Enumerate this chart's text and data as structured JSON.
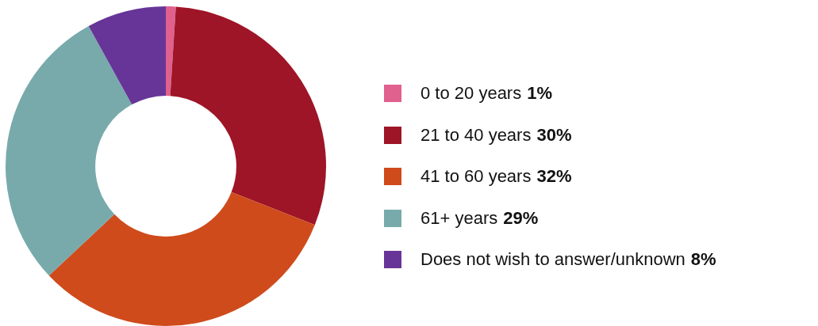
{
  "chart_data": {
    "type": "donut",
    "categories": [
      "0 to 20 years",
      "21 to 40 years",
      "41 to 60 years",
      "61+ years",
      "Does not wish to answer/unknown"
    ],
    "values": [
      1,
      30,
      32,
      29,
      8
    ],
    "value_labels": [
      "1%",
      "30%",
      "32%",
      "29%",
      "8%"
    ],
    "colors": [
      "#e0608e",
      "#9e1527",
      "#cf4b1c",
      "#78aaab",
      "#673597"
    ],
    "legend": "right"
  }
}
